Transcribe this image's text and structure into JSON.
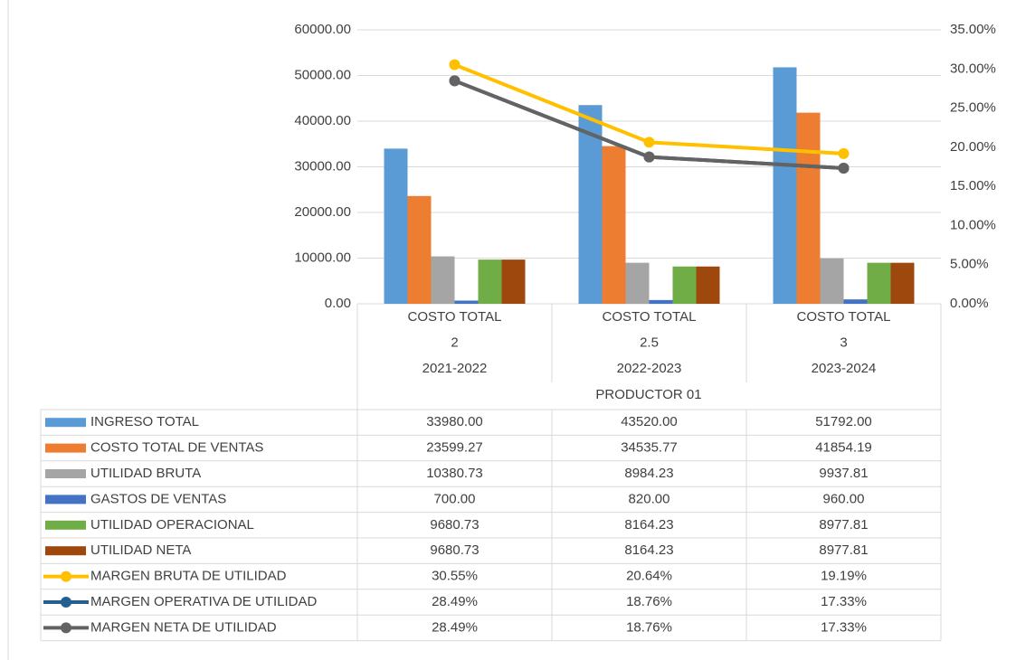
{
  "chart_data": {
    "type": "bar",
    "categories": [
      "2021-2022",
      "2022-2023",
      "2023-2024"
    ],
    "category_levels": [
      [
        "COSTO TOTAL",
        "COSTO TOTAL",
        "COSTO TOTAL"
      ],
      [
        "2",
        "2.5",
        "3"
      ]
    ],
    "group": "PRODUCTOR 01",
    "ylim": [
      0,
      60000
    ],
    "yticks": [
      {
        "value": 0,
        "label": "0.00"
      },
      {
        "value": 10000,
        "label": "10000.00"
      },
      {
        "value": 20000,
        "label": "20000.00"
      },
      {
        "value": 30000,
        "label": "30000.00"
      },
      {
        "value": 40000,
        "label": "40000.00"
      },
      {
        "value": 50000,
        "label": "50000.00"
      },
      {
        "value": 60000,
        "label": "60000.00"
      }
    ],
    "y2lim": [
      0,
      35
    ],
    "y2ticks": [
      {
        "value": 0,
        "label": "0.00%"
      },
      {
        "value": 5,
        "label": "5.00%"
      },
      {
        "value": 10,
        "label": "10.00%"
      },
      {
        "value": 15,
        "label": "15.00%"
      },
      {
        "value": 20,
        "label": "20.00%"
      },
      {
        "value": 25,
        "label": "25.00%"
      },
      {
        "value": 30,
        "label": "30.00%"
      },
      {
        "value": 35,
        "label": "35.00%"
      }
    ],
    "grid": true,
    "series": [
      {
        "name": "INGRESO TOTAL",
        "type": "bar",
        "color": "#5b9bd5",
        "values": [
          33980,
          43520,
          51792
        ],
        "value_labels": [
          "33980.00",
          "43520.00",
          "51792.00"
        ]
      },
      {
        "name": "COSTO TOTAL DE VENTAS",
        "type": "bar",
        "color": "#ed7d31",
        "values": [
          23599.27,
          34535.77,
          41854.19
        ],
        "value_labels": [
          "23599.27",
          "34535.77",
          "41854.19"
        ]
      },
      {
        "name": "UTILIDAD BRUTA",
        "type": "bar",
        "color": "#a5a5a5",
        "values": [
          10380.73,
          8984.23,
          9937.81
        ],
        "value_labels": [
          "10380.73",
          "8984.23",
          "9937.81"
        ]
      },
      {
        "name": "GASTOS DE VENTAS",
        "type": "bar",
        "color": "#4472c4",
        "values": [
          700,
          820,
          960
        ],
        "value_labels": [
          "700.00",
          "820.00",
          "960.00"
        ]
      },
      {
        "name": "UTILIDAD OPERACIONAL",
        "type": "bar",
        "color": "#70ad47",
        "values": [
          9680.73,
          8164.23,
          8977.81
        ],
        "value_labels": [
          "9680.73",
          "8164.23",
          "8977.81"
        ]
      },
      {
        "name": "UTILIDAD NETA",
        "type": "bar",
        "color": "#9e480e",
        "values": [
          9680.73,
          8164.23,
          8977.81
        ],
        "value_labels": [
          "9680.73",
          "8164.23",
          "8977.81"
        ]
      },
      {
        "name": "MARGEN BRUTA DE UTILIDAD",
        "type": "line",
        "axis": "y2",
        "color": "#ffc000",
        "values": [
          30.55,
          20.64,
          19.19
        ],
        "value_labels": [
          "30.55%",
          "20.64%",
          "19.19%"
        ]
      },
      {
        "name": "MARGEN OPERATIVA DE UTILIDAD",
        "type": "line",
        "axis": "y2",
        "color": "#255e91",
        "values": [
          28.49,
          18.76,
          17.33
        ],
        "value_labels": [
          "28.49%",
          "18.76%",
          "17.33%"
        ]
      },
      {
        "name": "MARGEN NETA DE UTILIDAD",
        "type": "line",
        "axis": "y2",
        "color": "#636363",
        "values": [
          28.49,
          18.76,
          17.33
        ],
        "value_labels": [
          "28.49%",
          "18.76%",
          "17.33%"
        ]
      }
    ]
  }
}
